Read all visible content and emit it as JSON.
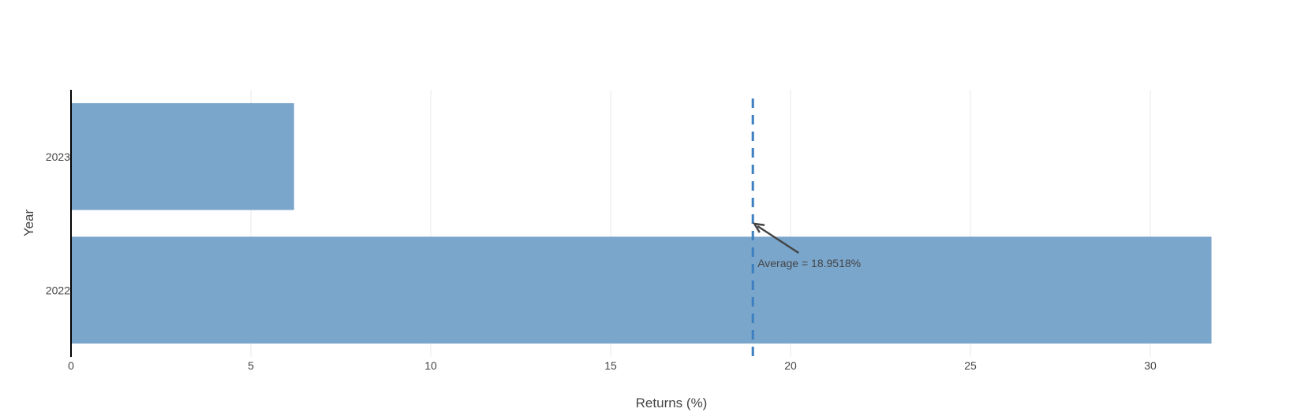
{
  "chart_data": {
    "type": "bar",
    "orientation": "horizontal",
    "categories": [
      "2022",
      "2023"
    ],
    "values": [
      31.7,
      6.2
    ],
    "xlabel": "Returns (%)",
    "ylabel": "Year",
    "xlim": [
      0,
      33
    ],
    "xticks": [
      "0",
      "5",
      "10",
      "15",
      "20",
      "25",
      "30"
    ],
    "grid": true,
    "legend": "none",
    "average_line": {
      "value": 18.9518,
      "label": "Average = 18.9518%"
    },
    "colors": {
      "bar": "#7aa6cc",
      "average_line": "#3d7fbf",
      "grid": "#e8e8e8",
      "axis": "#000000",
      "arrow": "#444444"
    }
  }
}
